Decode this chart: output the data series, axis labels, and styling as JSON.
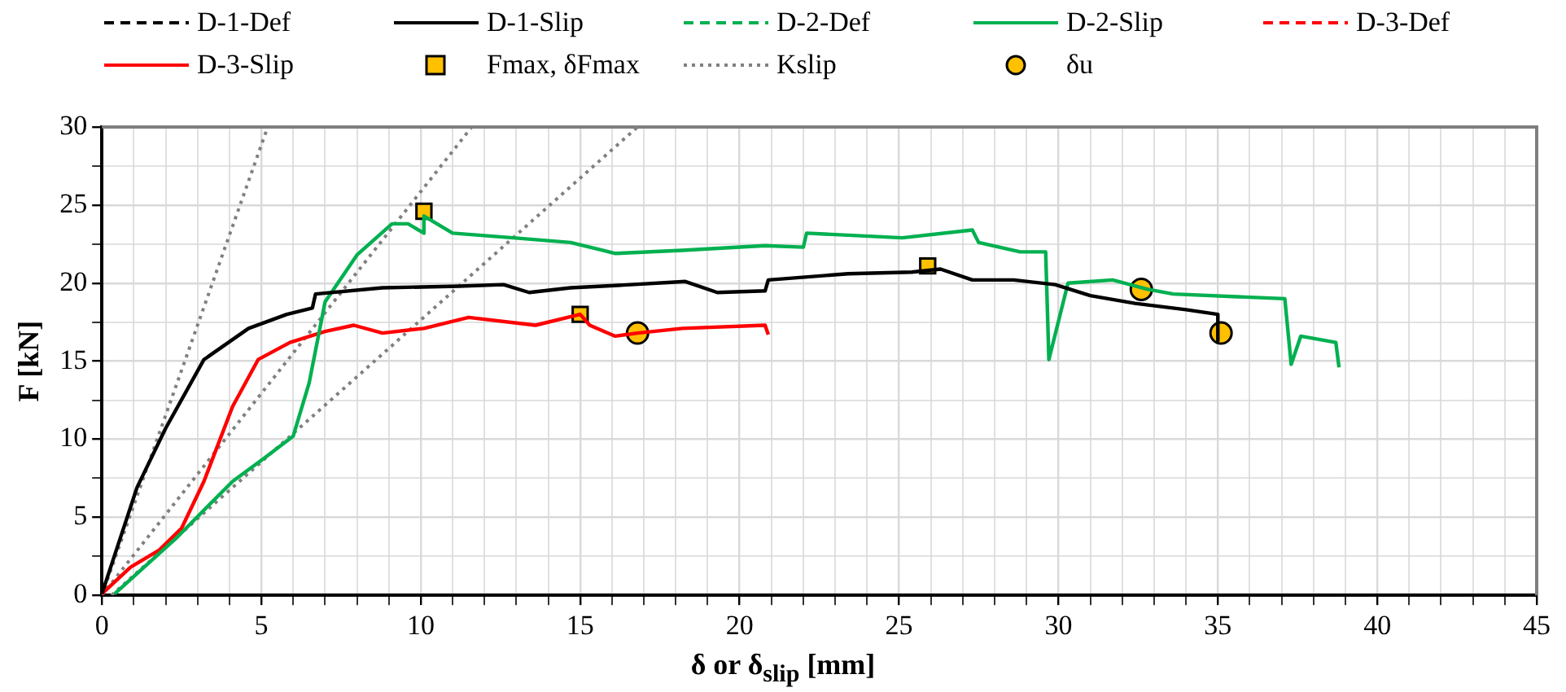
{
  "chart_data": {
    "type": "line",
    "xlabel": "δ or δ$_{slip}$ [mm]",
    "ylabel": "F [kN]",
    "xlim": [
      0,
      45
    ],
    "ylim": [
      0,
      30
    ],
    "xticks": [
      0,
      {
        "value": 1,
        "label": null
      },
      {
        "value": 2,
        "label": null
      },
      {
        "value": 3,
        "label": null
      },
      {
        "value": 4,
        "label": null
      },
      5,
      {
        "value": 6,
        "label": null
      },
      {
        "value": 7,
        "label": null
      },
      {
        "value": 8,
        "label": null
      },
      {
        "value": 9,
        "label": null
      },
      10,
      {
        "value": 11,
        "label": null
      },
      {
        "value": 12,
        "label": null
      },
      {
        "value": 13,
        "label": null
      },
      {
        "value": 14,
        "label": null
      },
      15,
      {
        "value": 16,
        "label": null
      },
      {
        "value": 17,
        "label": null
      },
      {
        "value": 18,
        "label": null
      },
      {
        "value": 19,
        "label": null
      },
      20,
      {
        "value": 21,
        "label": null
      },
      {
        "value": 22,
        "label": null
      },
      {
        "value": 23,
        "label": null
      },
      {
        "value": 24,
        "label": null
      },
      25,
      {
        "value": 26,
        "label": null
      },
      {
        "value": 27,
        "label": null
      },
      {
        "value": 28,
        "label": null
      },
      {
        "value": 29,
        "label": null
      },
      30,
      {
        "value": 31,
        "label": null
      },
      {
        "value": 32,
        "label": null
      },
      {
        "value": 33,
        "label": null
      },
      {
        "value": 34,
        "label": null
      },
      35,
      {
        "value": 36,
        "label": null
      },
      {
        "value": 37,
        "label": null
      },
      {
        "value": 38,
        "label": null
      },
      {
        "value": 39,
        "label": null
      },
      40,
      {
        "value": 41,
        "label": null
      },
      {
        "value": 42,
        "label": null
      },
      {
        "value": 43,
        "label": null
      },
      {
        "value": 44,
        "label": null
      },
      45
    ],
    "yticks": [
      0,
      {
        "value": 2.5,
        "label": null
      },
      5,
      {
        "value": 7.5,
        "label": null
      },
      10,
      {
        "value": 12.5,
        "label": null
      },
      15,
      {
        "value": 17.5,
        "label": null
      },
      20,
      {
        "value": 22.5,
        "label": null
      },
      25,
      {
        "value": 27.5,
        "label": null
      },
      30
    ],
    "grid": true,
    "legend": "top",
    "series": [
      {
        "name": "D-1-Def",
        "color": "#000000",
        "line_style": "dashed",
        "marker": "none"
      },
      {
        "name": "D-1-Slip",
        "color": "#000000",
        "line_style": "solid",
        "marker": "none",
        "x": [
          0,
          1.1,
          2.0,
          3.2,
          4.6,
          5.8,
          6.6,
          6.7,
          8.8,
          11.2,
          12.6,
          13.4,
          14.7,
          15.7,
          18.3,
          19.3,
          20.8,
          20.9,
          23.4,
          25.4,
          26.3,
          27.3,
          28.6,
          29.9,
          31.0,
          32.4,
          34.0,
          35.0,
          35.0
        ],
        "values": [
          0.1,
          6.9,
          10.7,
          15.1,
          17.1,
          18.0,
          18.4,
          19.3,
          19.7,
          19.8,
          19.9,
          19.4,
          19.7,
          19.8,
          20.1,
          19.4,
          19.5,
          20.2,
          20.6,
          20.7,
          20.9,
          20.2,
          20.2,
          19.9,
          19.2,
          18.7,
          18.3,
          18.0,
          16.3
        ]
      },
      {
        "name": "D-2-Def",
        "color": "#00b050",
        "line_style": "dashed",
        "marker": "none"
      },
      {
        "name": "D-2-Slip",
        "color": "#00b050",
        "line_style": "solid",
        "marker": "none",
        "x": [
          0.4,
          2.3,
          4.1,
          5.1,
          6.0,
          6.5,
          7.0,
          8.0,
          9.1,
          9.6,
          10.1,
          10.1,
          11.0,
          12.9,
          14.7,
          15.7,
          16.1,
          18.2,
          20.8,
          22.0,
          22.1,
          25.1,
          27.3,
          27.5,
          28.8,
          29.6,
          29.7,
          30.3,
          31.7,
          32.8,
          33.6,
          37.1,
          37.3,
          37.6,
          38.7,
          38.8
        ],
        "values": [
          0.1,
          3.6,
          7.3,
          8.8,
          10.2,
          13.6,
          18.8,
          21.8,
          23.8,
          23.8,
          23.2,
          24.3,
          23.2,
          22.9,
          22.6,
          22.1,
          21.9,
          22.1,
          22.4,
          22.3,
          23.2,
          22.9,
          23.4,
          22.6,
          22.0,
          22.0,
          15.1,
          20.0,
          20.2,
          19.6,
          19.3,
          19.0,
          14.8,
          16.6,
          16.2,
          14.6
        ]
      },
      {
        "name": "D-3-Def",
        "color": "#ff0000",
        "line_style": "dashed",
        "marker": "none"
      },
      {
        "name": "D-3-Slip",
        "color": "#ff0000",
        "line_style": "solid",
        "marker": "none",
        "x": [
          0,
          0.9,
          1.8,
          2.5,
          3.2,
          4.1,
          4.9,
          5.9,
          7.0,
          7.9,
          8.8,
          10.1,
          11.5,
          13.6,
          15.0,
          15.3,
          16.1,
          16.8,
          18.2,
          20.8,
          20.9
        ],
        "values": [
          0.1,
          1.8,
          2.9,
          4.3,
          7.3,
          12.1,
          15.1,
          16.2,
          16.9,
          17.3,
          16.8,
          17.1,
          17.8,
          17.3,
          18.0,
          17.3,
          16.6,
          16.8,
          17.1,
          17.3,
          16.7
        ]
      },
      {
        "name": "Fmax, δFmax",
        "type": "scatter",
        "color": "#ffc000",
        "marker": "square",
        "x": [
          10.1,
          15.0,
          25.9
        ],
        "values": [
          24.6,
          18.0,
          21.1
        ]
      },
      {
        "name": "Kslip",
        "color": "#808080",
        "line_style": "dotted",
        "marker": "none",
        "x": [
          0,
          5.2,
          null,
          0,
          11.6,
          null,
          0.3,
          16.8
        ],
        "values": [
          0,
          30,
          null,
          0,
          30,
          null,
          0,
          30
        ]
      },
      {
        "name": "δu",
        "type": "scatter",
        "color": "#ffc000",
        "marker": "circle",
        "x": [
          16.8,
          32.6,
          35.1
        ],
        "values": [
          16.8,
          19.6,
          16.8
        ]
      }
    ]
  }
}
